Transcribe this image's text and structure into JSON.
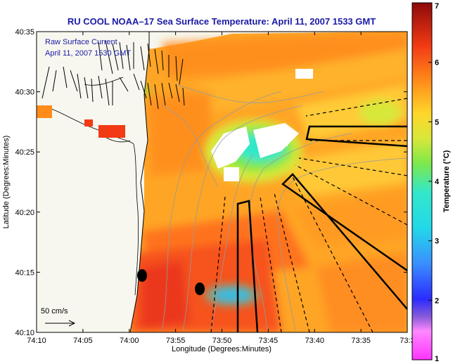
{
  "chart_data": {
    "type": "heatmap",
    "title": "RU COOL  NOAA–17  Sea Surface Temperature:  April 11, 2007 1533 GMT",
    "xlabel": "Longitude (Degrees:Minutes)",
    "ylabel": "Latitude (Degrees:Minutes)",
    "x_ticks": [
      "74:10",
      "74:05",
      "74:00",
      "73:55",
      "73:50",
      "73:45",
      "73:40",
      "73:35",
      "73:3"
    ],
    "y_ticks": [
      "40:10",
      "40:15",
      "40:20",
      "40:25",
      "40:30",
      "40:35"
    ],
    "xlim_minutes_west": [
      10,
      30
    ],
    "ylim_minutes_north": [
      10,
      35
    ],
    "legend": {
      "line1": "Raw Surface Current",
      "line2": "April 11, 2007 1530 GMT",
      "scale_label": "50 cm/s"
    },
    "colorbar": {
      "label": "Temperature (°C)",
      "range": [
        1,
        7
      ],
      "ticks": [
        "1",
        "2",
        "3",
        "4",
        "5",
        "6",
        "7"
      ]
    },
    "colors": {
      "title": "#1a1aa6",
      "land": "#f7f7ef",
      "no_data": "#ffffff"
    }
  }
}
